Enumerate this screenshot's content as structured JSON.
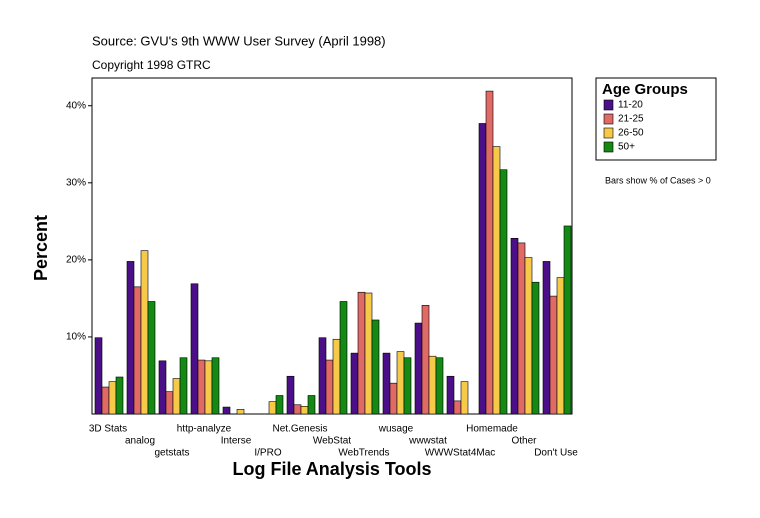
{
  "chart_data": {
    "type": "bar",
    "subtitle": "Source: GVU's 9th WWW User Survey (April 1998)",
    "copyright": "Copyright 1998 GTRC",
    "y_label": "Percent",
    "x_label": "Log File Analysis Tools",
    "legend_title": "Age Groups",
    "note": "Bars show % of Cases > 0",
    "categories": [
      "3D Stats",
      "analog",
      "getstats",
      "http-analyze",
      "Interse",
      "I/PRO",
      "Net.Genesis",
      "WebStat",
      "WebTrends",
      "wusage",
      "wwwstat",
      "WWWStat4Mac",
      "Homemade",
      "Other",
      "Don't Use"
    ],
    "series": [
      {
        "name": "11-20",
        "color": "#4b0f87",
        "values": [
          9.9,
          19.8,
          6.9,
          16.9,
          0.9,
          0,
          4.9,
          9.9,
          7.9,
          7.9,
          11.8,
          4.9,
          37.7,
          22.8,
          19.8
        ]
      },
      {
        "name": "21-25",
        "color": "#e06a66",
        "values": [
          3.5,
          16.5,
          2.9,
          7.0,
          0,
          0,
          1.2,
          7.0,
          15.8,
          4.0,
          14.1,
          1.7,
          41.9,
          22.2,
          15.3
        ]
      },
      {
        "name": "26-50",
        "color": "#f7c948",
        "values": [
          4.2,
          21.2,
          4.6,
          6.9,
          0.6,
          1.6,
          1.0,
          9.7,
          15.7,
          8.1,
          7.5,
          4.2,
          34.7,
          20.3,
          17.7
        ]
      },
      {
        "name": "50+",
        "color": "#148a14",
        "values": [
          4.8,
          14.6,
          7.3,
          7.3,
          0,
          2.4,
          2.4,
          14.6,
          12.2,
          7.3,
          7.3,
          0,
          31.7,
          17.1,
          24.4
        ]
      }
    ],
    "ylim": [
      0,
      43.6
    ],
    "yticks": [
      {
        "value": 10,
        "label": "10%"
      },
      {
        "value": 20,
        "label": "20%"
      },
      {
        "value": 30,
        "label": "30%"
      },
      {
        "value": 40,
        "label": "40%"
      }
    ],
    "legend_position": "right"
  }
}
